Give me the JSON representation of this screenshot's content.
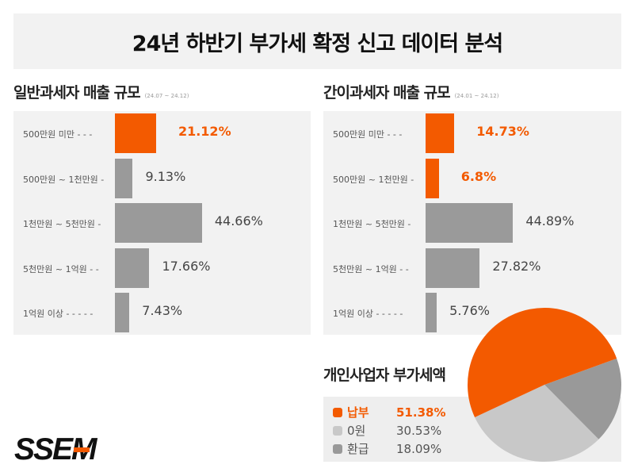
{
  "title": "24년 하반기 부가세 확정 신고 데이터 분석",
  "colors": {
    "accent": "#f35a00",
    "gray": "#9a9a9a",
    "light_gray": "#c8c8c8",
    "panel": "#f2f2f2"
  },
  "general": {
    "title": "일반과세자 매출 규모",
    "period": "(24.07 ~ 24.12)",
    "rows": [
      {
        "label": "500만원 미만  - - -",
        "value": 21.12,
        "text": "21.12%",
        "highlight": true
      },
      {
        "label": "500만원 ~ 1천만원  -",
        "value": 9.13,
        "text": "9.13%",
        "highlight": false
      },
      {
        "label": "1천만원 ~ 5천만원  -",
        "value": 44.66,
        "text": "44.66%",
        "highlight": false
      },
      {
        "label": "5천만원 ~ 1억원  - -",
        "value": 17.66,
        "text": "17.66%",
        "highlight": false
      },
      {
        "label": "1억원 이상 - - - - -",
        "value": 7.43,
        "text": "7.43%",
        "highlight": false
      }
    ]
  },
  "simple": {
    "title": "간이과세자 매출 규모",
    "period": "(24.01 ~ 24.12)",
    "rows": [
      {
        "label": "500만원 미만  - - -",
        "value": 14.73,
        "text": "14.73%",
        "highlight": true
      },
      {
        "label": "500만원 ~ 1천만원  -",
        "value": 6.8,
        "text": "6.8%",
        "highlight": true
      },
      {
        "label": "1천만원 ~ 5천만원  -",
        "value": 44.89,
        "text": "44.89%",
        "highlight": false
      },
      {
        "label": "5천만원 ~ 1억원  - -",
        "value": 27.82,
        "text": "27.82%",
        "highlight": false
      },
      {
        "label": "1억원 이상 - - - - -",
        "value": 5.76,
        "text": "5.76%",
        "highlight": false
      }
    ]
  },
  "vat": {
    "title": "개인사업자 부가세액",
    "items": [
      {
        "name": "납부",
        "value": 51.38,
        "text": "51.38%",
        "color": "#f35a00",
        "highlight": true
      },
      {
        "name": "0원",
        "value": 30.53,
        "text": "30.53%",
        "color": "#c8c8c8",
        "highlight": false
      },
      {
        "name": "환급",
        "value": 18.09,
        "text": "18.09%",
        "color": "#999999",
        "highlight": false
      }
    ]
  },
  "logo": "SSEM"
}
